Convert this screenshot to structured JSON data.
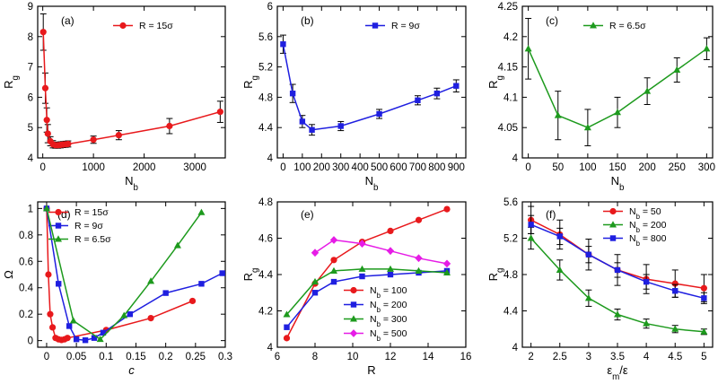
{
  "chart_data": [
    {
      "id": "a",
      "type": "line",
      "panel_label": "(a)",
      "xlabel": "N",
      "xlabel_sub": "b",
      "ylabel": "R",
      "ylabel_sub": "g",
      "xlim": [
        -100,
        3600
      ],
      "ylim": [
        4,
        9
      ],
      "xticks": [
        0,
        1000,
        2000,
        3000
      ],
      "yticks": [
        4,
        5,
        6,
        7,
        8,
        9
      ],
      "series": [
        {
          "name": "R = 15σ",
          "color": "#e8191c",
          "marker": "circle",
          "x": [
            10,
            50,
            80,
            100,
            150,
            200,
            250,
            300,
            350,
            400,
            450,
            500,
            1000,
            1500,
            2500,
            3500
          ],
          "y": [
            8.15,
            6.3,
            5.25,
            4.8,
            4.55,
            4.45,
            4.42,
            4.42,
            4.43,
            4.44,
            4.45,
            4.46,
            4.6,
            4.75,
            5.05,
            5.52
          ],
          "err": [
            0.6,
            0.5,
            0.4,
            0.3,
            0.15,
            0.12,
            0.1,
            0.1,
            0.1,
            0.1,
            0.1,
            0.1,
            0.12,
            0.15,
            0.25,
            0.35
          ]
        }
      ]
    },
    {
      "id": "b",
      "type": "line",
      "panel_label": "(b)",
      "xlabel": "N",
      "xlabel_sub": "b",
      "ylabel": "R",
      "ylabel_sub": "g",
      "xlim": [
        -30,
        950
      ],
      "ylim": [
        4,
        6
      ],
      "xticks": [
        0,
        100,
        200,
        300,
        400,
        500,
        600,
        700,
        800,
        900
      ],
      "yticks": [
        4,
        4.4,
        4.8,
        5.2,
        5.6,
        6
      ],
      "ytick_labels": [
        "4",
        "4.4",
        "4.8",
        "5.2",
        "5.6",
        "6"
      ],
      "series": [
        {
          "name": "R = 9σ",
          "color": "#1f1fe0",
          "marker": "square",
          "x": [
            0,
            50,
            100,
            150,
            300,
            500,
            700,
            800,
            900
          ],
          "y": [
            5.5,
            4.85,
            4.48,
            4.37,
            4.42,
            4.58,
            4.76,
            4.85,
            4.95
          ],
          "err": [
            0.12,
            0.12,
            0.08,
            0.07,
            0.06,
            0.06,
            0.06,
            0.07,
            0.08
          ]
        }
      ]
    },
    {
      "id": "c",
      "type": "line",
      "panel_label": "(c)",
      "xlabel": "N",
      "xlabel_sub": "b",
      "ylabel": "R",
      "ylabel_sub": "g",
      "xlim": [
        -10,
        310
      ],
      "ylim": [
        4,
        4.25
      ],
      "xticks": [
        0,
        50,
        100,
        150,
        200,
        250,
        300
      ],
      "yticks": [
        4,
        4.05,
        4.1,
        4.15,
        4.2,
        4.25
      ],
      "ytick_labels": [
        "4",
        "4.05",
        "4.1",
        "4.15",
        "4.2",
        "4.25"
      ],
      "series": [
        {
          "name": "R = 6.5σ",
          "color": "#1d9a1d",
          "marker": "triangle",
          "x": [
            0,
            50,
            100,
            150,
            200,
            250,
            300
          ],
          "y": [
            4.18,
            4.07,
            4.05,
            4.075,
            4.11,
            4.145,
            4.18
          ],
          "err": [
            0.05,
            0.04,
            0.03,
            0.025,
            0.022,
            0.02,
            0.018
          ]
        }
      ]
    },
    {
      "id": "d",
      "type": "line",
      "panel_label": "(d)",
      "xlabel": "c",
      "xlabel_italic": true,
      "ylabel": "Ω",
      "xlim": [
        -0.015,
        0.3
      ],
      "ylim": [
        -0.05,
        1.05
      ],
      "xticks": [
        0,
        0.05,
        0.1,
        0.15,
        0.2,
        0.25,
        0.3
      ],
      "xtick_labels": [
        "0",
        "0.05",
        "0.1",
        "0.15",
        "0.2",
        "0.25",
        "0.3"
      ],
      "yticks": [
        0,
        0.2,
        0.4,
        0.6,
        0.8,
        1
      ],
      "ytick_labels": [
        "0",
        "0.2",
        "0.4",
        "0.6",
        "0.8",
        "1"
      ],
      "series": [
        {
          "name": "R = 15σ",
          "color": "#e8191c",
          "marker": "circle",
          "x": [
            0,
            0.003,
            0.006,
            0.01,
            0.015,
            0.02,
            0.025,
            0.03,
            0.035,
            0.1,
            0.175,
            0.245
          ],
          "y": [
            1,
            0.5,
            0.2,
            0.1,
            0.02,
            0.01,
            0.005,
            0.01,
            0.02,
            0.08,
            0.17,
            0.3
          ]
        },
        {
          "name": "R = 9σ",
          "color": "#1f1fe0",
          "marker": "square",
          "x": [
            0,
            0.02,
            0.038,
            0.05,
            0.065,
            0.08,
            0.095,
            0.14,
            0.2,
            0.26,
            0.295
          ],
          "y": [
            1,
            0.43,
            0.11,
            0.01,
            0.003,
            0.02,
            0.06,
            0.2,
            0.36,
            0.43,
            0.51
          ]
        },
        {
          "name": "R = 6.5σ",
          "color": "#1d9a1d",
          "marker": "triangle",
          "x": [
            0,
            0.045,
            0.09,
            0.13,
            0.175,
            0.22,
            0.26
          ],
          "y": [
            1,
            0.15,
            0.01,
            0.19,
            0.45,
            0.72,
            0.97
          ]
        }
      ]
    },
    {
      "id": "e",
      "type": "line",
      "panel_label": "(e)",
      "xlabel": "R",
      "ylabel": "R",
      "ylabel_sub": "g",
      "xlim": [
        6,
        16
      ],
      "ylim": [
        4,
        4.8
      ],
      "xticks": [
        6,
        8,
        10,
        12,
        14,
        16
      ],
      "yticks": [
        4,
        4.2,
        4.4,
        4.6,
        4.8
      ],
      "ytick_labels": [
        "4",
        "4.2",
        "4.4",
        "4.6",
        "4.8"
      ],
      "series": [
        {
          "name": "N",
          "name_sub": "b",
          "name_tail": " = 100",
          "color": "#e8191c",
          "marker": "circle",
          "x": [
            6.5,
            8,
            9,
            10.5,
            12,
            13.5,
            15
          ],
          "y": [
            4.05,
            4.35,
            4.48,
            4.58,
            4.64,
            4.7,
            4.76
          ]
        },
        {
          "name": "N",
          "name_sub": "b",
          "name_tail": " = 200",
          "color": "#1f1fe0",
          "marker": "square",
          "x": [
            6.5,
            8,
            9,
            10.5,
            12,
            13.5,
            15
          ],
          "y": [
            4.11,
            4.3,
            4.36,
            4.39,
            4.4,
            4.41,
            4.42
          ]
        },
        {
          "name": "N",
          "name_sub": "b",
          "name_tail": " = 300",
          "color": "#1d9a1d",
          "marker": "triangle",
          "x": [
            6.5,
            8,
            9,
            10.5,
            12,
            13.5,
            15
          ],
          "y": [
            4.18,
            4.36,
            4.42,
            4.43,
            4.43,
            4.42,
            4.41
          ]
        },
        {
          "name": "N",
          "name_sub": "b",
          "name_tail": " = 500",
          "color": "#e61ce6",
          "marker": "diamond",
          "x": [
            8,
            9,
            10.5,
            12,
            13.5,
            15
          ],
          "y": [
            4.52,
            4.59,
            4.57,
            4.53,
            4.49,
            4.46
          ]
        }
      ]
    },
    {
      "id": "f",
      "type": "line",
      "panel_label": "(f)",
      "xlabel": "ε",
      "xlabel_sub": "m",
      "xlabel_tail": "/ε",
      "ylabel": "R",
      "ylabel_sub": "g",
      "xlim": [
        1.85,
        5.15
      ],
      "ylim": [
        4,
        5.6
      ],
      "xticks": [
        2,
        2.5,
        3,
        3.5,
        4,
        4.5,
        5
      ],
      "xtick_labels": [
        "2",
        "2.5",
        "3",
        "3.5",
        "4",
        "4.5",
        "5"
      ],
      "yticks": [
        4,
        4.4,
        4.8,
        5.2,
        5.6
      ],
      "ytick_labels": [
        "4",
        "4.4",
        "4.8",
        "5.2",
        "5.6"
      ],
      "series": [
        {
          "name": "N",
          "name_sub": "b",
          "name_tail": " = 50",
          "color": "#e8191c",
          "marker": "circle",
          "x": [
            2,
            2.5,
            3,
            3.5,
            4,
            4.5,
            5
          ],
          "y": [
            5.4,
            5.24,
            5.02,
            4.85,
            4.75,
            4.7,
            4.65
          ],
          "err": [
            0.15,
            0.16,
            0.17,
            0.17,
            0.16,
            0.15,
            0.15
          ]
        },
        {
          "name": "N",
          "name_sub": "b",
          "name_tail": " = 200",
          "color": "#1d9a1d",
          "marker": "triangle",
          "x": [
            2,
            2.5,
            3,
            3.5,
            4,
            4.5,
            5
          ],
          "y": [
            5.2,
            4.85,
            4.54,
            4.36,
            4.26,
            4.2,
            4.17
          ],
          "err": [
            0.12,
            0.11,
            0.09,
            0.06,
            0.05,
            0.04,
            0.03
          ]
        },
        {
          "name": "N",
          "name_sub": "b",
          "name_tail": " = 800",
          "color": "#1f1fe0",
          "marker": "square",
          "x": [
            2,
            2.5,
            3,
            3.5,
            4,
            4.5,
            5
          ],
          "y": [
            5.35,
            5.22,
            5.02,
            4.85,
            4.72,
            4.62,
            4.54
          ],
          "err": [
            0.1,
            0.09,
            0.09,
            0.08,
            0.08,
            0.07,
            0.06
          ]
        }
      ]
    }
  ]
}
